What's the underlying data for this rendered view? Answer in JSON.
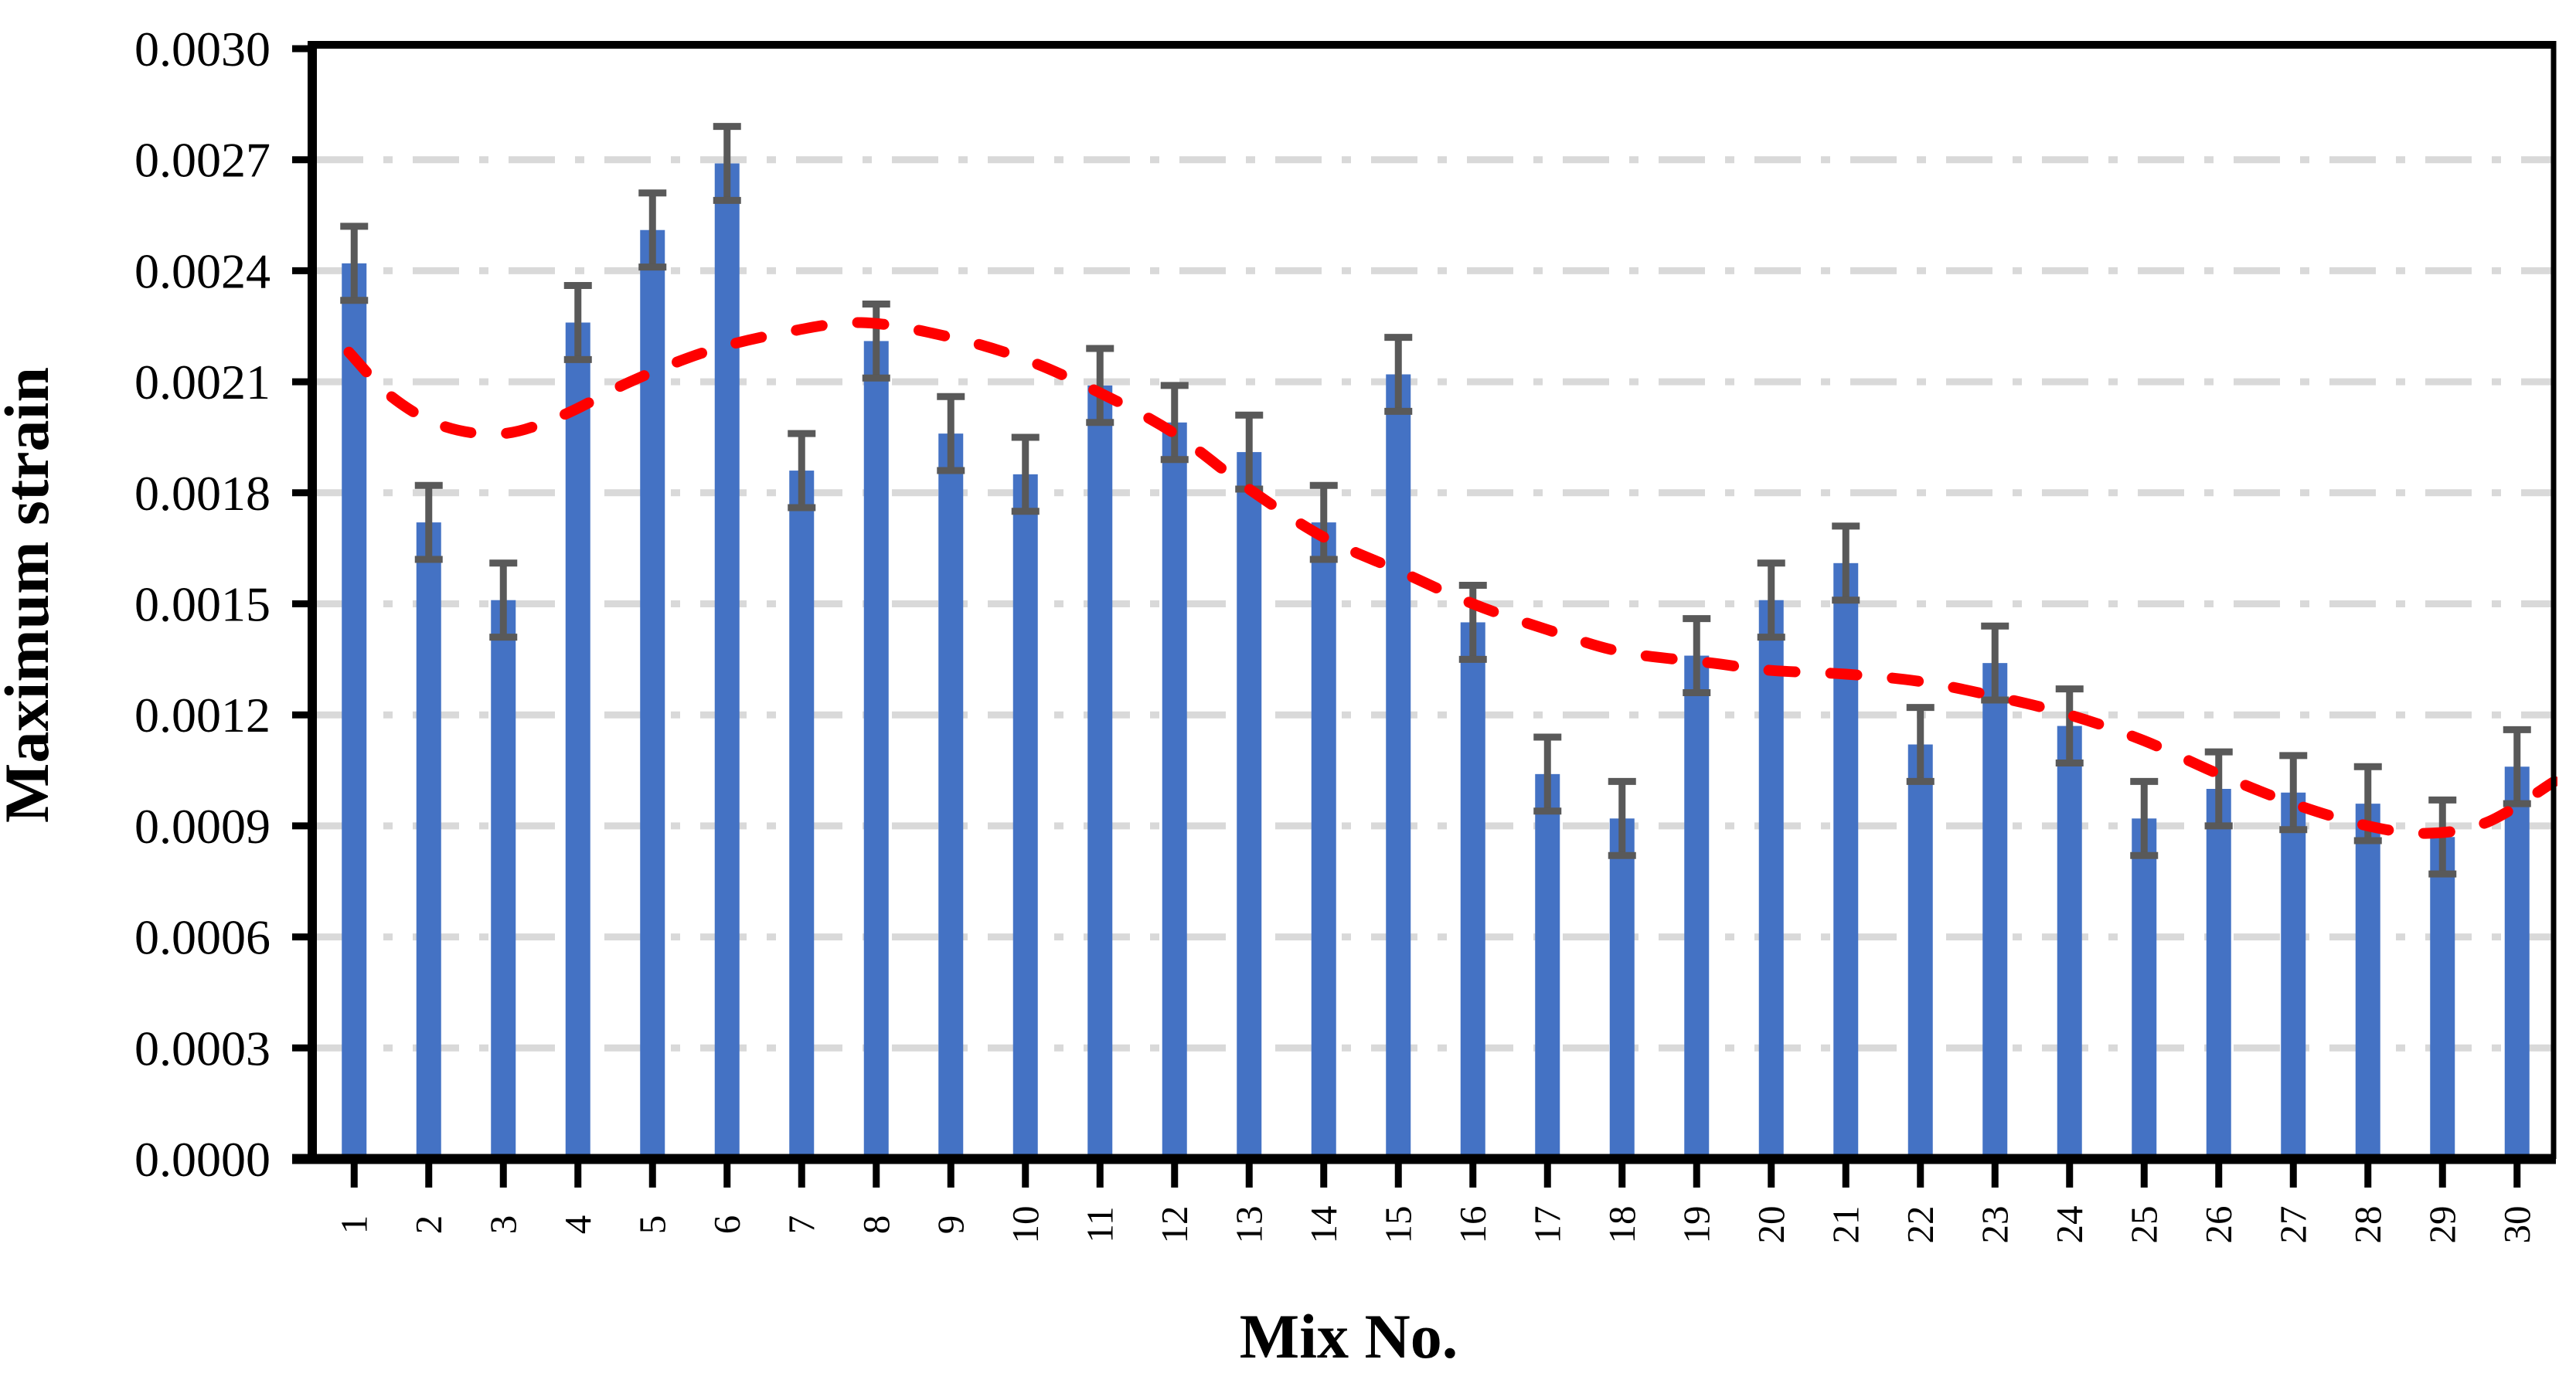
{
  "chart_data": {
    "type": "bar",
    "title": "",
    "xlabel": "Mix No.",
    "ylabel": "Maximum strain",
    "categories": [
      "1",
      "2",
      "3",
      "4",
      "5",
      "6",
      "7",
      "8",
      "9",
      "10",
      "11",
      "12",
      "13",
      "14",
      "15",
      "16",
      "17",
      "18",
      "19",
      "20",
      "21",
      "22",
      "23",
      "24",
      "25",
      "26",
      "27",
      "28",
      "29",
      "30"
    ],
    "values": [
      0.00242,
      0.00172,
      0.00151,
      0.00226,
      0.00251,
      0.00269,
      0.00186,
      0.00221,
      0.00196,
      0.00185,
      0.00209,
      0.00199,
      0.00191,
      0.00172,
      0.00212,
      0.00145,
      0.00104,
      0.00092,
      0.00136,
      0.00151,
      0.00161,
      0.00112,
      0.00134,
      0.00117,
      0.00092,
      0.001,
      0.00099,
      0.00096,
      0.00087,
      0.00106
    ],
    "error_bar_plus": 0.0001,
    "error_bar_minus": 0.0001,
    "ylim": [
      0.0,
      0.003
    ],
    "ytick_step": 0.0003,
    "ytick_labels": [
      "0.0000",
      "0.0003",
      "0.0006",
      "0.0009",
      "0.0012",
      "0.0015",
      "0.0018",
      "0.0021",
      "0.0024",
      "0.0027",
      "0.0030"
    ],
    "grid": "horizontal dash-dot gridlines at every 0.0003, plot area boxed, no legend",
    "bar_color": "#4472C4",
    "error_bar_color": "#595959",
    "gridline_color": "#D9D9D9",
    "axis_color": "#000000",
    "trendline": {
      "style": "dashed",
      "color": "#FF0000",
      "points": [
        [
          0.93,
          0.00218
        ],
        [
          1.5,
          0.00206
        ],
        [
          2.2,
          0.00198
        ],
        [
          3.0,
          0.00196
        ],
        [
          3.8,
          0.00201
        ],
        [
          4.7,
          0.0021
        ],
        [
          5.7,
          0.00218
        ],
        [
          6.7,
          0.00223
        ],
        [
          7.8,
          0.00226
        ],
        [
          9.0,
          0.00222
        ],
        [
          10.0,
          0.00216
        ],
        [
          11.0,
          0.00207
        ],
        [
          12.0,
          0.00196
        ],
        [
          13.0,
          0.00181
        ],
        [
          14.0,
          0.00168
        ],
        [
          15.0,
          0.00159
        ],
        [
          16.0,
          0.0015
        ],
        [
          17.0,
          0.00143
        ],
        [
          18.0,
          0.00137
        ],
        [
          19.2,
          0.00134
        ],
        [
          20.0,
          0.00132
        ],
        [
          21.0,
          0.00131
        ],
        [
          22.0,
          0.00129
        ],
        [
          23.0,
          0.00125
        ],
        [
          24.0,
          0.0012
        ],
        [
          25.0,
          0.00113
        ],
        [
          26.0,
          0.00104
        ],
        [
          27.0,
          0.00096
        ],
        [
          28.0,
          0.0009
        ],
        [
          28.8,
          0.00088
        ],
        [
          29.6,
          0.00091
        ],
        [
          30.5,
          0.00102
        ]
      ]
    }
  }
}
